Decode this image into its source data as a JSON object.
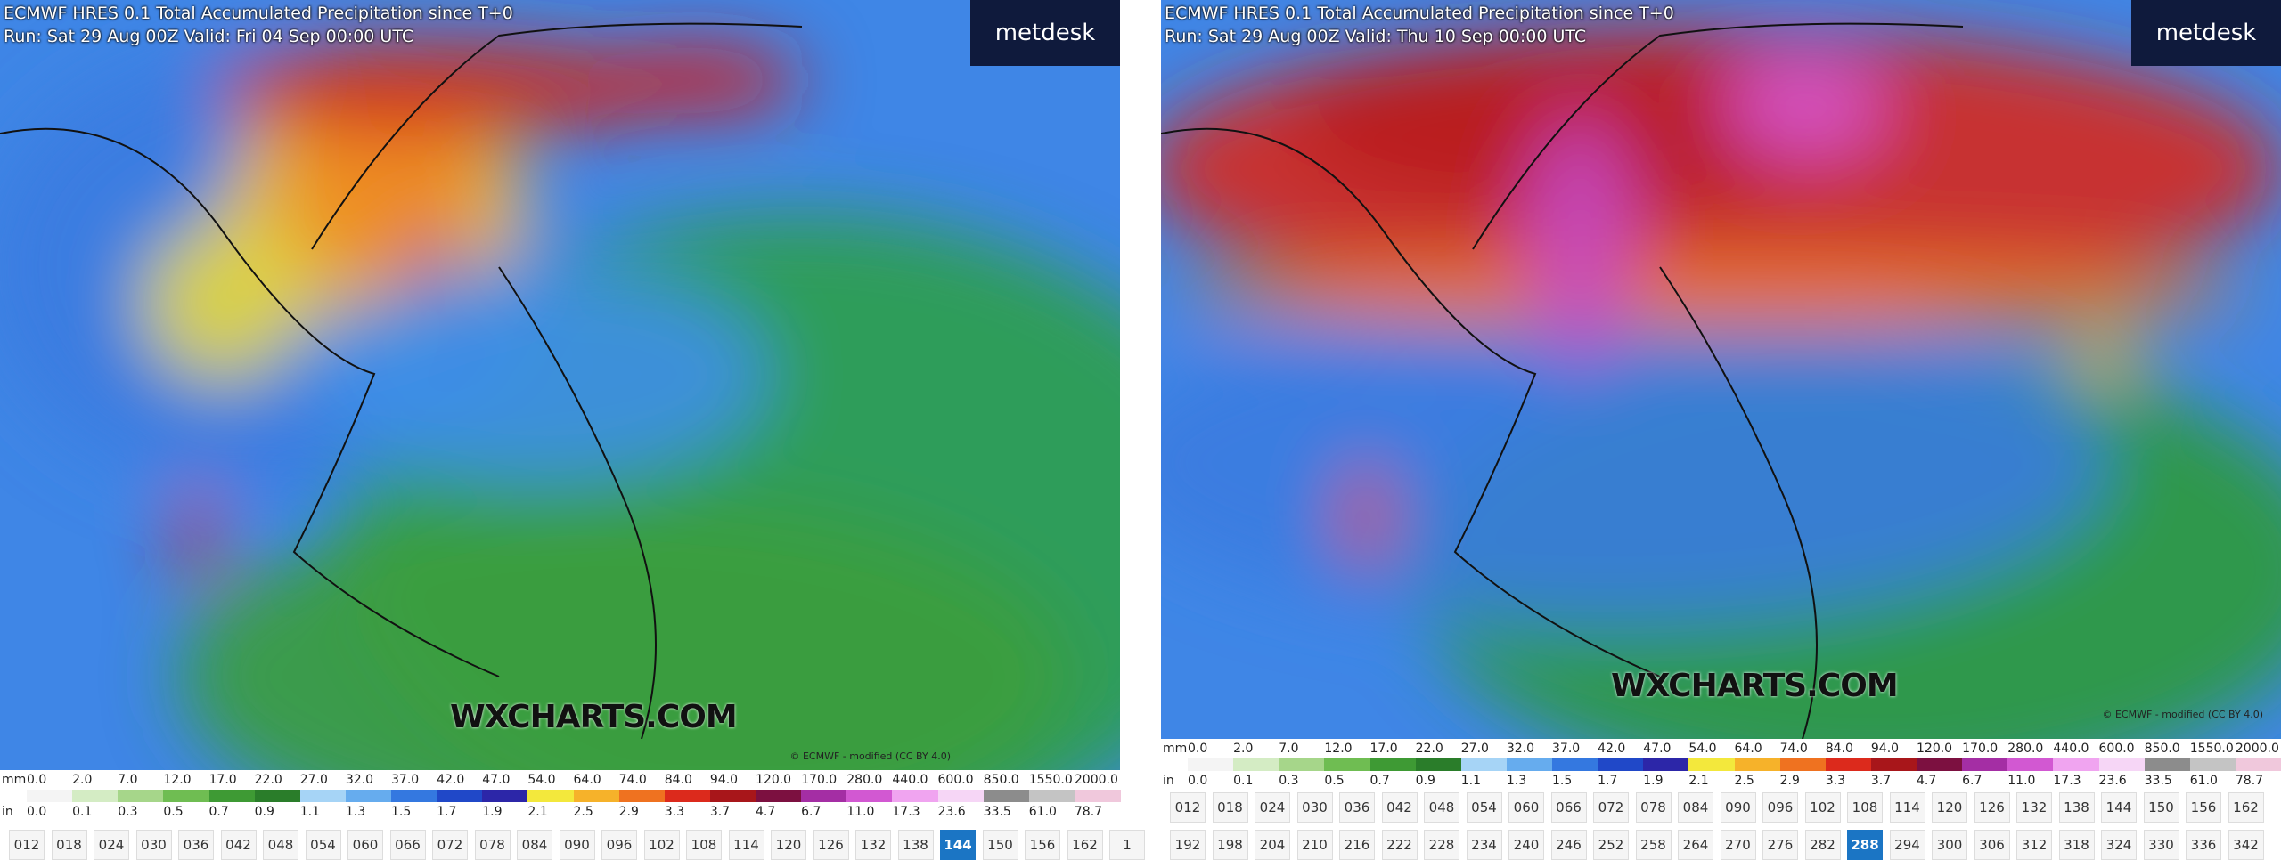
{
  "legend": {
    "mm_label": "mm",
    "in_label": "in",
    "mm": [
      "0.0",
      "2.0",
      "7.0",
      "12.0",
      "17.0",
      "22.0",
      "27.0",
      "32.0",
      "37.0",
      "42.0",
      "47.0",
      "54.0",
      "64.0",
      "74.0",
      "84.0",
      "94.0",
      "120.0",
      "170.0",
      "280.0",
      "440.0",
      "600.0",
      "850.0",
      "1550.0",
      "2000.0"
    ],
    "in": [
      "0.0",
      "0.1",
      "0.3",
      "0.5",
      "0.7",
      "0.9",
      "1.1",
      "1.3",
      "1.5",
      "1.7",
      "1.9",
      "2.1",
      "2.5",
      "2.9",
      "3.3",
      "3.7",
      "4.7",
      "6.7",
      "11.0",
      "17.3",
      "23.6",
      "33.5",
      "61.0",
      "78.7"
    ],
    "colors": [
      "#f4f4f4",
      "#d4ecc4",
      "#a6d68a",
      "#6fbd52",
      "#3e9a34",
      "#2a7d2a",
      "#a6d4f6",
      "#66acee",
      "#3478e0",
      "#2048c8",
      "#2c26a8",
      "#f3e83c",
      "#f6b22a",
      "#ef7220",
      "#dc2a1c",
      "#a8161a",
      "#7c1040",
      "#a42ea4",
      "#d258d2",
      "#f0a4f0",
      "#f6d6f6",
      "#8c8c8c",
      "#c4c4c4",
      "#f0c8dc"
    ]
  },
  "panels": [
    {
      "header": {
        "model": "ECMWF HRES 0.1",
        "title": "Total Accumulated Precipitation since T+0",
        "run": "Run: Sat 29 Aug 00Z Valid: Fri 04 Sep 00:00 UTC"
      },
      "logo": "metdesk",
      "watermark": "WXCHARTS.COM",
      "copyright": "© ECMWF - modified (CC BY 4.0)",
      "timesteps": [
        [
          "012",
          "018",
          "024",
          "030",
          "036",
          "042",
          "048",
          "054",
          "060",
          "066",
          "072",
          "078",
          "084",
          "090",
          "096",
          "102",
          "108",
          "114",
          "120",
          "126",
          "132",
          "138",
          "144",
          "150",
          "156",
          "162",
          "1"
        ]
      ],
      "selected": "144"
    },
    {
      "header": {
        "model": "ECMWF HRES 0.1",
        "title": "Total Accumulated Precipitation since T+0",
        "run": "Run: Sat 29 Aug 00Z Valid: Thu 10 Sep 00:00 UTC"
      },
      "logo": "metdesk",
      "watermark": "WXCHARTS.COM",
      "copyright": "© ECMWF - modified (CC BY 4.0)",
      "timesteps": [
        [
          "012",
          "018",
          "024",
          "030",
          "036",
          "042",
          "048",
          "054",
          "060",
          "066",
          "072",
          "078",
          "084",
          "090",
          "096",
          "102",
          "108",
          "114",
          "120",
          "126",
          "132",
          "138",
          "144",
          "150",
          "156",
          "162"
        ],
        [
          "192",
          "198",
          "204",
          "210",
          "216",
          "222",
          "228",
          "234",
          "240",
          "246",
          "252",
          "258",
          "264",
          "270",
          "276",
          "282",
          "288",
          "294",
          "300",
          "306",
          "312",
          "318",
          "324",
          "330",
          "336",
          "342"
        ]
      ],
      "selected": "288"
    }
  ]
}
